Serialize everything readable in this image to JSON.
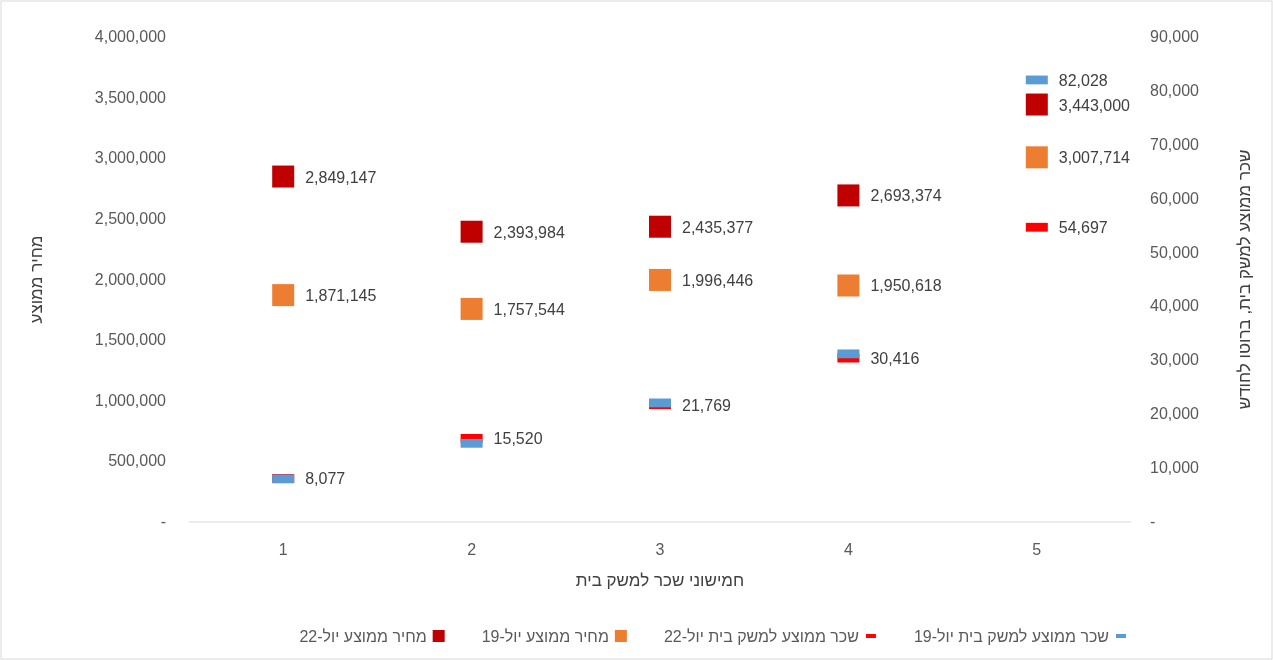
{
  "chart_data": {
    "type": "scatter",
    "xlabel": "חמישוני שכר למשק בית",
    "ylabel": "מחיר ממוצע",
    "y2label": "שכר ממוצע למשק בית, ברוטו לחודש",
    "categories": [
      "1",
      "2",
      "3",
      "4",
      "5"
    ],
    "ylim": [
      0,
      4000000
    ],
    "yticks": [
      {
        "value": 0,
        "label": "-"
      },
      {
        "value": 500000,
        "label": "500,000"
      },
      {
        "value": 1000000,
        "label": "1,000,000"
      },
      {
        "value": 1500000,
        "label": "1,500,000"
      },
      {
        "value": 2000000,
        "label": "2,000,000"
      },
      {
        "value": 2500000,
        "label": "2,500,000"
      },
      {
        "value": 3000000,
        "label": "3,000,000"
      },
      {
        "value": 3500000,
        "label": "3,500,000"
      },
      {
        "value": 4000000,
        "label": "4,000,000"
      }
    ],
    "y2lim": [
      0,
      90000
    ],
    "y2ticks": [
      {
        "value": 0,
        "label": "-"
      },
      {
        "value": 10000,
        "label": "10,000"
      },
      {
        "value": 20000,
        "label": "20,000"
      },
      {
        "value": 30000,
        "label": "30,000"
      },
      {
        "value": 40000,
        "label": "40,000"
      },
      {
        "value": 50000,
        "label": "50,000"
      },
      {
        "value": 60000,
        "label": "60,000"
      },
      {
        "value": 70000,
        "label": "70,000"
      },
      {
        "value": 80000,
        "label": "80,000"
      },
      {
        "value": 90000,
        "label": "90,000"
      }
    ],
    "grid": false,
    "legend": "bottom",
    "series": [
      {
        "name": "שכר ממוצע למשק בית יול-19",
        "color": "#5b9bd5",
        "axis": "y2",
        "values": [
          8000,
          14600,
          22100,
          31200,
          82028
        ],
        "value_labels": [
          null,
          null,
          null,
          null,
          "82,028"
        ]
      },
      {
        "name": "שכר ממוצע למשק בית יול-22",
        "color": "#ff0000",
        "axis": "y2",
        "values": [
          8077,
          15520,
          21769,
          30416,
          54697
        ],
        "value_labels": [
          "8,077",
          "15,520",
          "21,769",
          "30,416",
          "54,697"
        ]
      },
      {
        "name": "מחיר ממוצע יול-19",
        "color": "#ed7d31",
        "marker": "square",
        "values": [
          1871145,
          1757544,
          1996446,
          1950618,
          3007714
        ],
        "value_labels": [
          "1,871,145",
          "1,757,544",
          "1,996,446",
          "1,950,618",
          "3,007,714"
        ]
      },
      {
        "name": "מחיר ממוצע יול-22",
        "color": "#c00000",
        "marker": "square",
        "values": [
          2849147,
          2393984,
          2435377,
          2693374,
          3443000
        ],
        "value_labels": [
          "2,849,147",
          "2,393,984",
          "2,435,377",
          "2,693,374",
          "3,443,000"
        ]
      }
    ]
  }
}
